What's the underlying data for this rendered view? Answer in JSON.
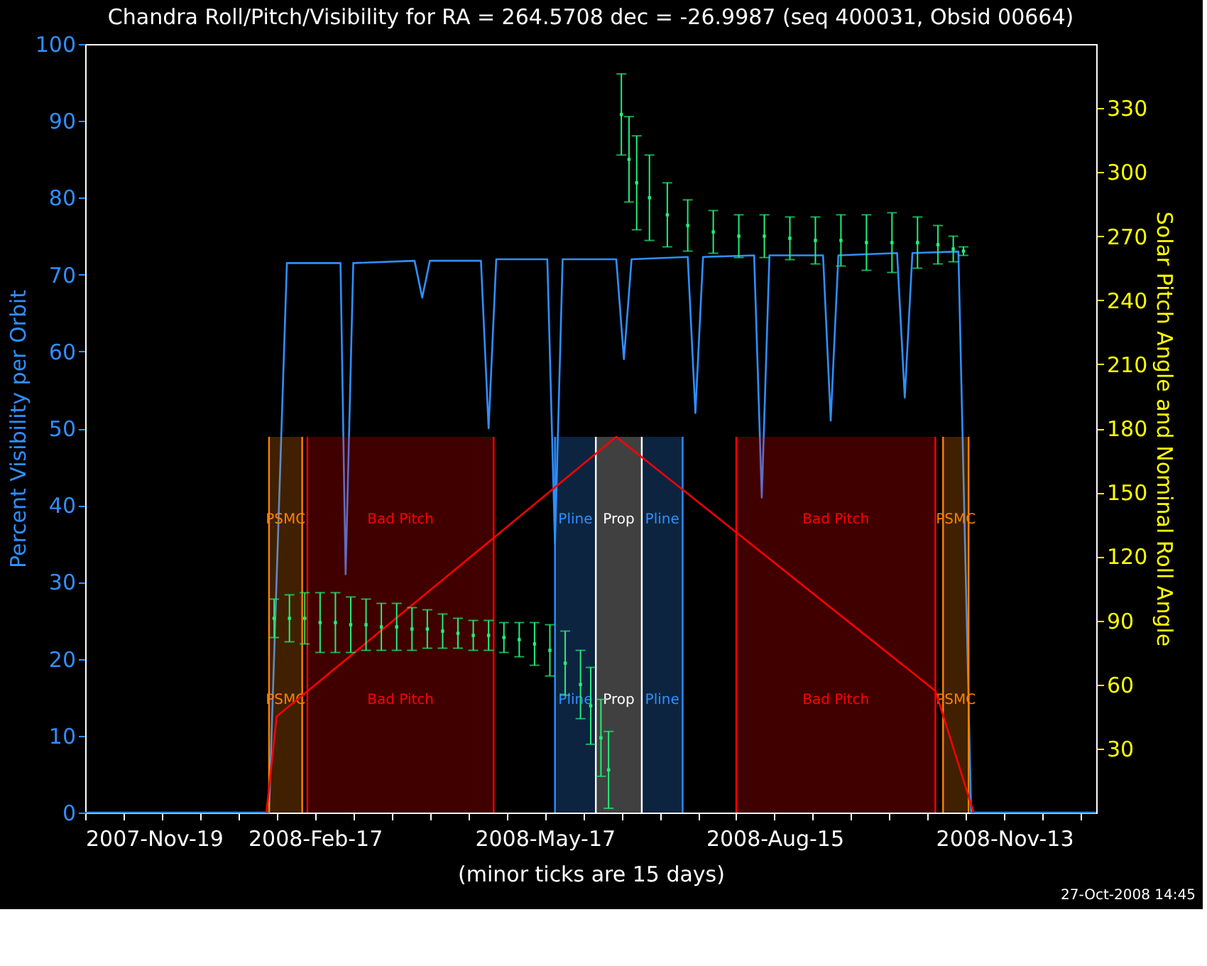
{
  "chart_data": {
    "type": "line",
    "title": "Chandra Roll/Pitch/Visibility for RA = 264.5708 dec = -26.9987 (seq 400031, Obsid 00664)",
    "xlabel": "(minor ticks are 15 days)",
    "ylabel": "Percent Visibility per Orbit",
    "y2label": "Solar Pitch Angle and Nominal Roll Angle",
    "xlim": [
      "2007-11-19",
      "2008-12-19"
    ],
    "xticks": [
      {
        "value": "2007-11-19",
        "label": "2007-Nov-19"
      },
      {
        "value": "2007-12-04",
        "label": null
      },
      {
        "value": "2007-12-19",
        "label": null
      },
      {
        "value": "2008-01-03",
        "label": null
      },
      {
        "value": "2008-01-18",
        "label": null
      },
      {
        "value": "2008-02-02",
        "label": null
      },
      {
        "value": "2008-02-17",
        "label": "2008-Feb-17"
      },
      {
        "value": "2008-03-03",
        "label": null
      },
      {
        "value": "2008-03-18",
        "label": null
      },
      {
        "value": "2008-04-02",
        "label": null
      },
      {
        "value": "2008-04-17",
        "label": null
      },
      {
        "value": "2008-05-02",
        "label": null
      },
      {
        "value": "2008-05-17",
        "label": "2008-May-17"
      },
      {
        "value": "2008-06-01",
        "label": null
      },
      {
        "value": "2008-06-16",
        "label": null
      },
      {
        "value": "2008-07-01",
        "label": null
      },
      {
        "value": "2008-07-16",
        "label": null
      },
      {
        "value": "2008-07-31",
        "label": null
      },
      {
        "value": "2008-08-15",
        "label": "2008-Aug-15"
      },
      {
        "value": "2008-08-30",
        "label": null
      },
      {
        "value": "2008-09-14",
        "label": null
      },
      {
        "value": "2008-09-29",
        "label": null
      },
      {
        "value": "2008-10-14",
        "label": null
      },
      {
        "value": "2008-10-29",
        "label": null
      },
      {
        "value": "2008-11-13",
        "label": "2008-Nov-13"
      },
      {
        "value": "2008-11-28",
        "label": null
      },
      {
        "value": "2008-12-13",
        "label": null
      }
    ],
    "ylim": [
      0,
      100
    ],
    "yticks": [
      0,
      10,
      20,
      30,
      40,
      50,
      60,
      70,
      80,
      90,
      100
    ],
    "y2lim": [
      0,
      360
    ],
    "y2ticks": [
      30,
      60,
      90,
      120,
      150,
      180,
      210,
      240,
      270,
      300,
      330
    ],
    "series": [
      {
        "color": "#2f8fff",
        "x": [
          "2007-11-19",
          "2008-01-30",
          "2008-02-06",
          "2008-02-27",
          "2008-02-29",
          "2008-03-03",
          "2008-03-27",
          "2008-03-30",
          "2008-04-02",
          "2008-04-22",
          "2008-04-25",
          "2008-04-28",
          "2008-05-18",
          "2008-05-21",
          "2008-05-24",
          "2008-06-14",
          "2008-06-17",
          "2008-06-20",
          "2008-07-12",
          "2008-07-15",
          "2008-07-18",
          "2008-08-07",
          "2008-08-10",
          "2008-08-13",
          "2008-09-03",
          "2008-09-06",
          "2008-09-09",
          "2008-10-02",
          "2008-10-05",
          "2008-10-08",
          "2008-10-26",
          "2008-10-31",
          "2008-12-19"
        ],
        "values": [
          0,
          0,
          71.5,
          71.5,
          31,
          71.5,
          71.8,
          67,
          71.8,
          71.8,
          50,
          72,
          72,
          35,
          72,
          72,
          59,
          72,
          72.3,
          52,
          72.3,
          72.5,
          41,
          72.5,
          72.5,
          51,
          72.5,
          72.8,
          54,
          72.8,
          73,
          0,
          0
        ]
      },
      {
        "axis": "y2",
        "color": "#ff0000",
        "x": [
          "2008-01-29",
          "2008-02-02",
          "2008-06-14",
          "2008-10-17",
          "2008-11-01"
        ],
        "values": [
          0,
          45,
          176,
          57,
          0
        ]
      },
      {
        "type": "scatter",
        "axis": "y2",
        "color": "#22ee77",
        "marker": "square",
        "x": [
          "2008-02-01",
          "2008-02-07",
          "2008-02-13",
          "2008-02-19",
          "2008-02-25",
          "2008-03-02",
          "2008-03-08",
          "2008-03-14",
          "2008-03-20",
          "2008-03-26",
          "2008-04-01",
          "2008-04-07",
          "2008-04-13",
          "2008-04-19",
          "2008-04-25",
          "2008-05-01",
          "2008-05-07",
          "2008-05-13",
          "2008-05-19",
          "2008-05-25",
          "2008-05-31",
          "2008-06-04",
          "2008-06-08",
          "2008-06-11",
          "2008-06-16",
          "2008-06-19",
          "2008-06-22",
          "2008-06-27",
          "2008-07-04",
          "2008-07-12",
          "2008-07-22",
          "2008-08-01",
          "2008-08-11",
          "2008-08-21",
          "2008-08-31",
          "2008-09-10",
          "2008-09-20",
          "2008-09-30",
          "2008-10-10",
          "2008-10-18",
          "2008-10-24",
          "2008-10-28"
        ],
        "values": [
          91,
          91,
          91,
          89,
          89,
          88,
          88,
          87,
          87,
          86,
          86,
          85,
          84,
          83,
          83,
          82,
          81,
          79,
          76,
          70,
          60,
          50,
          35,
          20,
          327,
          306,
          295,
          288,
          280,
          275,
          272,
          270,
          270,
          269,
          268,
          268,
          267,
          267,
          267,
          266,
          264,
          263
        ],
        "errors": [
          9,
          11,
          12,
          14,
          14,
          13,
          12,
          11,
          11,
          10,
          9,
          8,
          7,
          7,
          7,
          7,
          8,
          10,
          12,
          15,
          16,
          18,
          18,
          18,
          19,
          20,
          22,
          20,
          15,
          12,
          10,
          10,
          10,
          10,
          11,
          12,
          13,
          14,
          12,
          9,
          6,
          2
        ]
      }
    ],
    "ref_lines": [
      {
        "axis": "x",
        "value": "2008-01-30",
        "color": "#ff8000"
      },
      {
        "axis": "x",
        "value": "2008-02-12",
        "color": "#ff8000"
      },
      {
        "axis": "x",
        "value": "2008-02-14",
        "color": "#ff0000"
      },
      {
        "axis": "x",
        "value": "2008-04-27",
        "color": "#ff0000"
      },
      {
        "axis": "x",
        "value": "2008-05-21",
        "color": "#2f8fff"
      },
      {
        "axis": "x",
        "value": "2008-06-06",
        "color": "#ffffff"
      },
      {
        "axis": "x",
        "value": "2008-06-24",
        "color": "#ffffff"
      },
      {
        "axis": "x",
        "value": "2008-07-10",
        "color": "#2f8fff"
      },
      {
        "axis": "x",
        "value": "2008-07-31",
        "color": "#ff0000"
      },
      {
        "axis": "x",
        "value": "2008-10-17",
        "color": "#ff0000"
      },
      {
        "axis": "x",
        "value": "2008-10-20",
        "color": "#ff8000"
      },
      {
        "axis": "x",
        "value": "2008-10-30",
        "color": "#ff8000"
      }
    ],
    "bands": [
      {
        "axis": "x",
        "from": "2008-01-30",
        "to": "2008-02-12",
        "label": "PSMC",
        "color": "#ff8000"
      },
      {
        "axis": "x",
        "from": "2008-02-14",
        "to": "2008-04-27",
        "label": "Bad Pitch",
        "color": "#ff0000"
      },
      {
        "axis": "x",
        "from": "2008-05-21",
        "to": "2008-06-06",
        "label": "Pline",
        "color": "#2f8fff"
      },
      {
        "axis": "x",
        "from": "2008-06-06",
        "to": "2008-06-24",
        "label": "Prop",
        "color": "#ffffff"
      },
      {
        "axis": "x",
        "from": "2008-06-24",
        "to": "2008-07-10",
        "label": "Pline",
        "color": "#2f8fff"
      },
      {
        "axis": "x",
        "from": "2008-07-31",
        "to": "2008-10-17",
        "label": "Bad Pitch",
        "color": "#ff0000"
      },
      {
        "axis": "x",
        "from": "2008-10-20",
        "to": "2008-10-30",
        "label": "PSMC",
        "color": "#ff8000"
      }
    ],
    "annotations": [
      "27-Oct-2008 14:45"
    ]
  }
}
